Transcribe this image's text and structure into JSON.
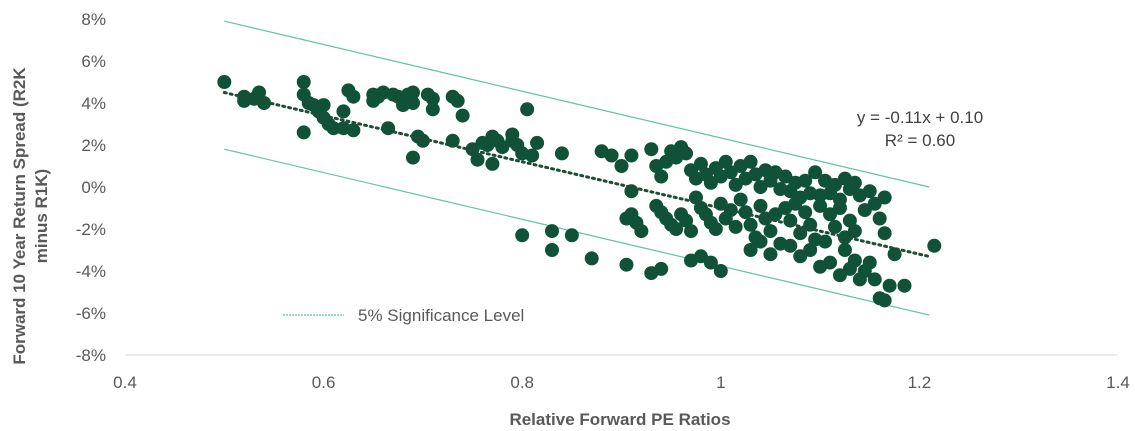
{
  "chart_data": {
    "type": "scatter",
    "xlabel": "Relative Forward PE Ratios",
    "ylabel_lines": [
      "Forward 10 Year Return Spread (R2K",
      "minus R1K)"
    ],
    "xlim": [
      0.4,
      1.4
    ],
    "ylim": [
      -0.08,
      0.08
    ],
    "x_ticks": [
      0.4,
      0.6,
      0.8,
      1.0,
      1.2,
      1.4
    ],
    "x_tick_labels": [
      "0.4",
      "0.6",
      "0.8",
      "1",
      "1.2",
      "1.4"
    ],
    "y_ticks": [
      0.08,
      0.06,
      0.04,
      0.02,
      0.0,
      -0.02,
      -0.04,
      -0.06,
      -0.08
    ],
    "y_tick_labels": [
      "8%",
      "6%",
      "4%",
      "2%",
      "0%",
      "-2%",
      "-4%",
      "-6%",
      "-8%"
    ],
    "grid": false,
    "colors": {
      "points": "#0F5238",
      "bands": "#5CC4A4",
      "trend": "#1E4D35",
      "axis": "#D9D9D9",
      "text": "#595959"
    },
    "trendline": {
      "slope": -0.11,
      "intercept": 0.1,
      "x_range": [
        0.5,
        1.21
      ],
      "equation_text": "y = -0.11x + 0.10",
      "r2_text": "R² = 0.60"
    },
    "bands": [
      {
        "x_range": [
          0.5,
          1.21
        ],
        "y_range": [
          0.079,
          0.0
        ]
      },
      {
        "x_range": [
          0.5,
          1.21
        ],
        "y_range": [
          0.018,
          -0.061
        ]
      }
    ],
    "legend": {
      "label": "5% Significance Level",
      "position": "bottom-left"
    },
    "series": [
      {
        "points": [
          [
            0.5,
            0.05
          ],
          [
            0.52,
            0.043
          ],
          [
            0.52,
            0.041
          ],
          [
            0.53,
            0.042
          ],
          [
            0.535,
            0.045
          ],
          [
            0.54,
            0.04
          ],
          [
            0.58,
            0.05
          ],
          [
            0.58,
            0.044
          ],
          [
            0.58,
            0.026
          ],
          [
            0.585,
            0.04
          ],
          [
            0.59,
            0.039
          ],
          [
            0.595,
            0.036
          ],
          [
            0.6,
            0.033
          ],
          [
            0.6,
            0.039
          ],
          [
            0.605,
            0.03
          ],
          [
            0.61,
            0.028
          ],
          [
            0.62,
            0.036
          ],
          [
            0.62,
            0.028
          ],
          [
            0.625,
            0.046
          ],
          [
            0.63,
            0.043
          ],
          [
            0.63,
            0.027
          ],
          [
            0.65,
            0.044
          ],
          [
            0.65,
            0.041
          ],
          [
            0.655,
            0.043
          ],
          [
            0.66,
            0.045
          ],
          [
            0.665,
            0.028
          ],
          [
            0.67,
            0.044
          ],
          [
            0.675,
            0.043
          ],
          [
            0.68,
            0.041
          ],
          [
            0.68,
            0.039
          ],
          [
            0.685,
            0.044
          ],
          [
            0.69,
            0.045
          ],
          [
            0.69,
            0.04
          ],
          [
            0.69,
            0.014
          ],
          [
            0.695,
            0.024
          ],
          [
            0.7,
            0.022
          ],
          [
            0.705,
            0.044
          ],
          [
            0.71,
            0.042
          ],
          [
            0.71,
            0.037
          ],
          [
            0.73,
            0.043
          ],
          [
            0.735,
            0.041
          ],
          [
            0.74,
            0.034
          ],
          [
            0.73,
            0.022
          ],
          [
            0.75,
            0.018
          ],
          [
            0.755,
            0.013
          ],
          [
            0.76,
            0.021
          ],
          [
            0.765,
            0.02
          ],
          [
            0.77,
            0.024
          ],
          [
            0.77,
            0.011
          ],
          [
            0.775,
            0.022
          ],
          [
            0.78,
            0.019
          ],
          [
            0.79,
            0.025
          ],
          [
            0.79,
            0.022
          ],
          [
            0.795,
            0.02
          ],
          [
            0.8,
            0.016
          ],
          [
            0.805,
            0.037
          ],
          [
            0.81,
            0.015
          ],
          [
            0.815,
            0.021
          ],
          [
            0.8,
            -0.023
          ],
          [
            0.83,
            -0.021
          ],
          [
            0.83,
            -0.03
          ],
          [
            0.84,
            0.016
          ],
          [
            0.85,
            -0.023
          ],
          [
            0.87,
            -0.034
          ],
          [
            0.88,
            0.017
          ],
          [
            0.89,
            0.015
          ],
          [
            0.9,
            0.01
          ],
          [
            0.91,
            0.015
          ],
          [
            0.905,
            -0.015
          ],
          [
            0.91,
            -0.002
          ],
          [
            0.91,
            -0.013
          ],
          [
            0.915,
            -0.017
          ],
          [
            0.92,
            -0.021
          ],
          [
            0.905,
            -0.037
          ],
          [
            0.93,
            0.018
          ],
          [
            0.935,
            0.01
          ],
          [
            0.94,
            0.005
          ],
          [
            0.945,
            0.012
          ],
          [
            0.95,
            0.017
          ],
          [
            0.955,
            0.014
          ],
          [
            0.96,
            0.019
          ],
          [
            0.965,
            0.016
          ],
          [
            0.935,
            -0.009
          ],
          [
            0.94,
            -0.012
          ],
          [
            0.945,
            -0.015
          ],
          [
            0.95,
            -0.018
          ],
          [
            0.955,
            -0.02
          ],
          [
            0.96,
            -0.013
          ],
          [
            0.965,
            -0.016
          ],
          [
            0.97,
            -0.021
          ],
          [
            0.93,
            -0.041
          ],
          [
            0.94,
            -0.039
          ],
          [
            0.97,
            0.008
          ],
          [
            0.975,
            0.004
          ],
          [
            0.98,
            0.011
          ],
          [
            0.985,
            0.006
          ],
          [
            0.99,
            0.002
          ],
          [
            0.995,
            0.009
          ],
          [
            1.0,
            0.005
          ],
          [
            1.005,
            0.012
          ],
          [
            1.01,
            0.007
          ],
          [
            1.015,
            0.001
          ],
          [
            0.975,
            -0.005
          ],
          [
            0.98,
            -0.01
          ],
          [
            0.985,
            -0.013
          ],
          [
            0.99,
            -0.017
          ],
          [
            0.995,
            -0.02
          ],
          [
            1.0,
            -0.008
          ],
          [
            1.005,
            -0.015
          ],
          [
            1.01,
            -0.011
          ],
          [
            1.015,
            -0.019
          ],
          [
            0.97,
            -0.035
          ],
          [
            0.98,
            -0.033
          ],
          [
            0.99,
            -0.036
          ],
          [
            1.0,
            -0.04
          ],
          [
            1.02,
            0.01
          ],
          [
            1.025,
            0.004
          ],
          [
            1.03,
            0.012
          ],
          [
            1.035,
            0.006
          ],
          [
            1.04,
            0.0
          ],
          [
            1.045,
            0.008
          ],
          [
            1.05,
            0.003
          ],
          [
            1.055,
            0.007
          ],
          [
            1.06,
            -0.001
          ],
          [
            1.02,
            -0.006
          ],
          [
            1.025,
            -0.012
          ],
          [
            1.03,
            -0.018
          ],
          [
            1.035,
            -0.024
          ],
          [
            1.04,
            -0.009
          ],
          [
            1.045,
            -0.015
          ],
          [
            1.05,
            -0.021
          ],
          [
            1.055,
            -0.013
          ],
          [
            1.06,
            -0.027
          ],
          [
            1.03,
            -0.03
          ],
          [
            1.04,
            -0.026
          ],
          [
            1.05,
            -0.032
          ],
          [
            1.065,
            0.005
          ],
          [
            1.07,
            -0.002
          ],
          [
            1.075,
            0.002
          ],
          [
            1.08,
            -0.005
          ],
          [
            1.085,
            0.003
          ],
          [
            1.09,
            -0.003
          ],
          [
            1.095,
            0.007
          ],
          [
            1.1,
            -0.004
          ],
          [
            1.065,
            -0.01
          ],
          [
            1.07,
            -0.016
          ],
          [
            1.075,
            -0.008
          ],
          [
            1.08,
            -0.022
          ],
          [
            1.085,
            -0.012
          ],
          [
            1.09,
            -0.018
          ],
          [
            1.095,
            -0.025
          ],
          [
            1.1,
            -0.009
          ],
          [
            1.07,
            -0.028
          ],
          [
            1.08,
            -0.033
          ],
          [
            1.09,
            -0.03
          ],
          [
            1.1,
            -0.038
          ],
          [
            1.105,
            -0.026
          ],
          [
            1.105,
            0.003
          ],
          [
            1.11,
            -0.003
          ],
          [
            1.115,
            0.001
          ],
          [
            1.12,
            -0.006
          ],
          [
            1.125,
            0.004
          ],
          [
            1.13,
            -0.001
          ],
          [
            1.135,
            0.002
          ],
          [
            1.11,
            -0.013
          ],
          [
            1.115,
            -0.019
          ],
          [
            1.12,
            -0.01
          ],
          [
            1.125,
            -0.024
          ],
          [
            1.13,
            -0.016
          ],
          [
            1.135,
            -0.021
          ],
          [
            1.11,
            -0.036
          ],
          [
            1.12,
            -0.042
          ],
          [
            1.125,
            -0.03
          ],
          [
            1.13,
            -0.039
          ],
          [
            1.135,
            -0.035
          ],
          [
            1.14,
            -0.044
          ],
          [
            1.14,
            -0.004
          ],
          [
            1.145,
            -0.011
          ],
          [
            1.15,
            -0.002
          ],
          [
            1.155,
            -0.008
          ],
          [
            1.16,
            -0.015
          ],
          [
            1.165,
            -0.005
          ],
          [
            1.165,
            -0.022
          ],
          [
            1.145,
            -0.04
          ],
          [
            1.15,
            -0.036
          ],
          [
            1.155,
            -0.044
          ],
          [
            1.16,
            -0.053
          ],
          [
            1.165,
            -0.054
          ],
          [
            1.17,
            -0.047
          ],
          [
            1.175,
            -0.032
          ],
          [
            1.185,
            -0.047
          ],
          [
            1.215,
            -0.028
          ]
        ]
      }
    ]
  }
}
